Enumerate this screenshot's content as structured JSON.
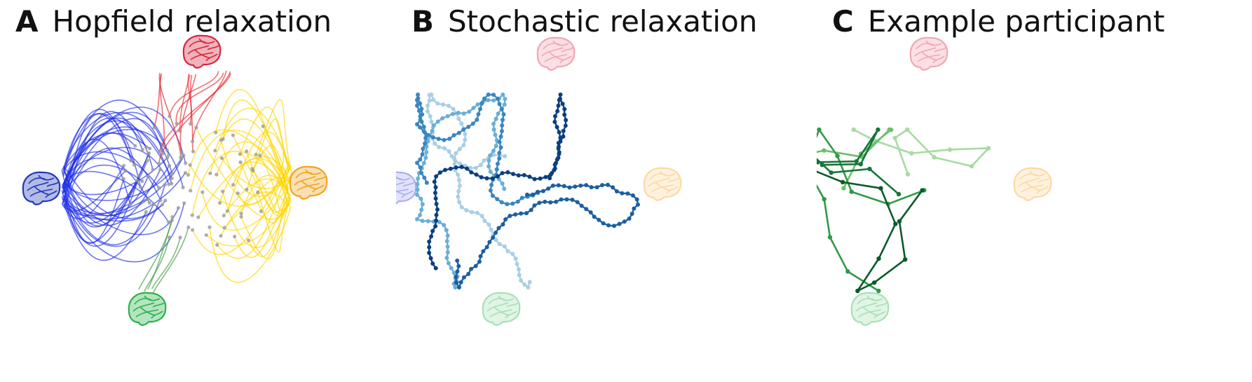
{
  "panels": [
    {
      "letter": "A",
      "title": "Hopfield relaxation",
      "attractor_colors": {
        "top": "#d7263d",
        "left": "#2238b8",
        "right": "#f0a321",
        "bottom": "#2bb24c"
      },
      "trajectory_colors": {
        "left": "#1f2ee8",
        "top": "#e8222a",
        "right": "#ffd500",
        "bottom": "#3c9a3c"
      }
    },
    {
      "letter": "B",
      "title": "Stochastic relaxation",
      "attractor_colors": {
        "top": "#f1a7b3",
        "left": "#a9aef0",
        "right": "#fbd9a2",
        "bottom": "#a8e0b6"
      },
      "trajectory_colors": [
        "#a9cfe6",
        "#6aaed6",
        "#3a86c0",
        "#1c5fa0",
        "#0b3f80"
      ]
    },
    {
      "letter": "C",
      "title": "Example participant",
      "attractor_colors": {
        "top": "#f1a7b3",
        "left": "#a9aef0",
        "right": "#fbd9a2",
        "bottom": "#a8e0b6"
      },
      "trajectory_colors": [
        "#a6dba0",
        "#6cc06a",
        "#2f9a48",
        "#16763a",
        "#0b5a2a"
      ]
    }
  ]
}
